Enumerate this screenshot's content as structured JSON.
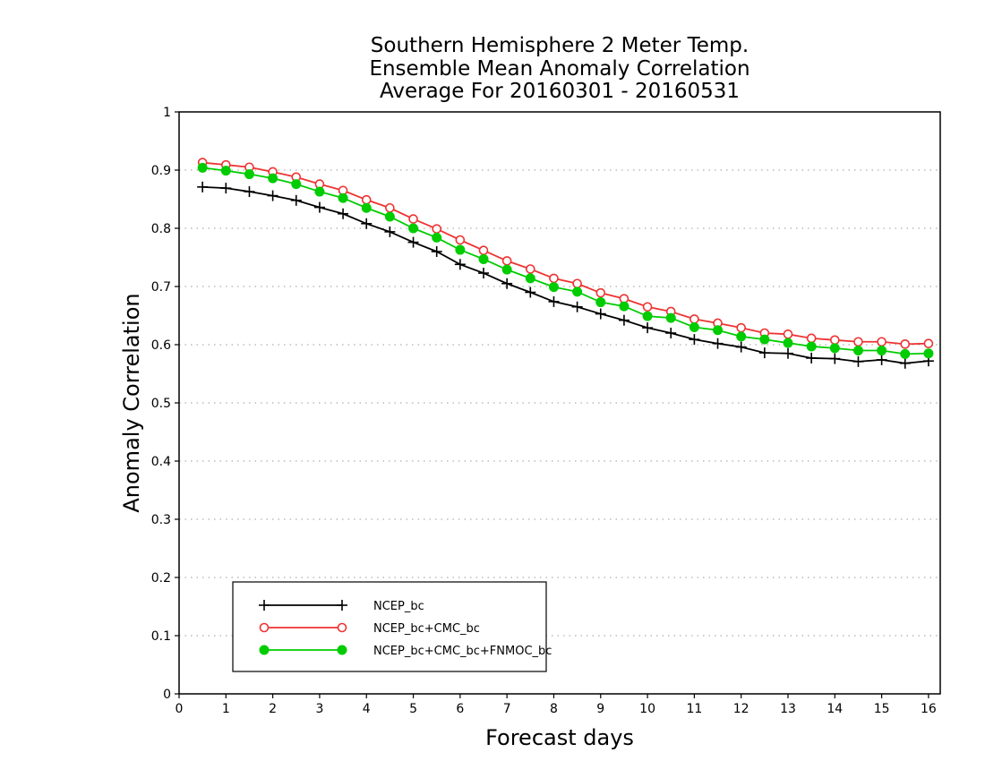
{
  "chart_data": {
    "type": "line",
    "title": [
      "Southern Hemisphere 2 Meter Temp.",
      "Ensemble Mean Anomaly Correlation",
      "Average For 20160301 - 20160531"
    ],
    "xlabel": "Forecast days",
    "ylabel": "Anomaly Correlation",
    "xlim": [
      0,
      16.25
    ],
    "ylim": [
      0,
      1
    ],
    "xticks": [
      "0",
      "1",
      "2",
      "3",
      "4",
      "5",
      "6",
      "7",
      "8",
      "9",
      "10",
      "11",
      "12",
      "13",
      "14",
      "15",
      "16"
    ],
    "yticks": [
      "0",
      "0.1",
      "0.2",
      "0.3",
      "0.4",
      "0.5",
      "0.6",
      "0.7",
      "0.8",
      "0.9",
      "1"
    ],
    "grid": "horizontal dotted",
    "legend_position": "bottom-left",
    "x": [
      0.5,
      1,
      1.5,
      2,
      2.5,
      3,
      3.5,
      4,
      4.5,
      5,
      5.5,
      6,
      6.5,
      7,
      7.5,
      8,
      8.5,
      9,
      9.5,
      10,
      10.5,
      11,
      11.5,
      12,
      12.5,
      13,
      13.5,
      14,
      14.5,
      15,
      15.5,
      16
    ],
    "series": [
      {
        "name": "NCEP_bc",
        "color": "#000000",
        "marker": "plus",
        "values": [
          0.871,
          0.869,
          0.863,
          0.856,
          0.848,
          0.836,
          0.825,
          0.808,
          0.794,
          0.776,
          0.76,
          0.738,
          0.723,
          0.705,
          0.69,
          0.674,
          0.665,
          0.653,
          0.642,
          0.629,
          0.62,
          0.609,
          0.602,
          0.596,
          0.586,
          0.585,
          0.577,
          0.576,
          0.571,
          0.574,
          0.568,
          0.572
        ]
      },
      {
        "name": "NCEP_bc+CMC_bc",
        "color": "#ee3333",
        "marker": "open-circle",
        "values": [
          0.913,
          0.909,
          0.905,
          0.897,
          0.888,
          0.876,
          0.865,
          0.849,
          0.835,
          0.816,
          0.799,
          0.78,
          0.762,
          0.744,
          0.73,
          0.714,
          0.705,
          0.689,
          0.679,
          0.665,
          0.657,
          0.644,
          0.637,
          0.629,
          0.62,
          0.618,
          0.611,
          0.608,
          0.605,
          0.605,
          0.601,
          0.602
        ]
      },
      {
        "name": "NCEP_bc+CMC_bc+FNMOC_bc",
        "color": "#00cc00",
        "marker": "filled-circle",
        "values": [
          0.904,
          0.899,
          0.893,
          0.886,
          0.876,
          0.863,
          0.852,
          0.835,
          0.82,
          0.8,
          0.784,
          0.763,
          0.747,
          0.729,
          0.714,
          0.699,
          0.691,
          0.673,
          0.666,
          0.649,
          0.646,
          0.63,
          0.625,
          0.614,
          0.609,
          0.603,
          0.597,
          0.594,
          0.59,
          0.59,
          0.584,
          0.585
        ]
      }
    ]
  }
}
